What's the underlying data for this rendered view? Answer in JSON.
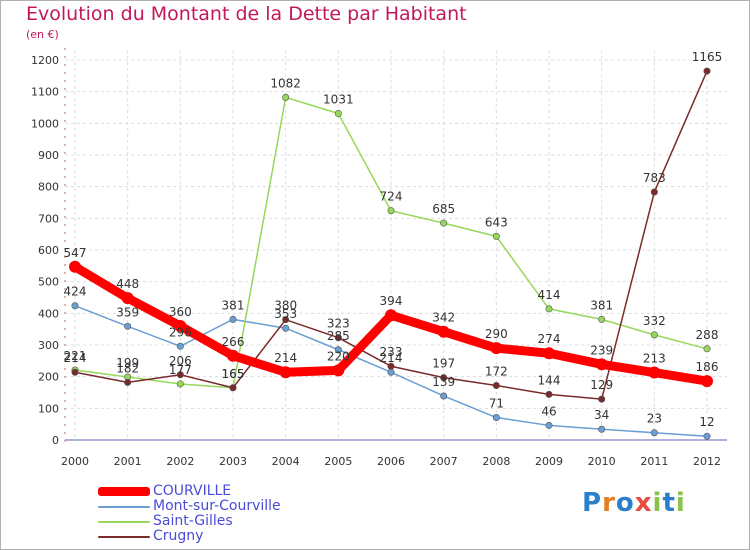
{
  "title": "Evolution du Montant de la Dette par Habitant",
  "subtitle": "(en €)",
  "brand": {
    "text": "Proxiti",
    "letter_colors": [
      "#2a7fc9",
      "#e67e22",
      "#2a7fc9",
      "#e74c3c",
      "#8bc34a",
      "#2a7fc9",
      "#8bc34a"
    ]
  },
  "chart_data": {
    "type": "line",
    "title": "Evolution du Montant de la Dette par Habitant",
    "subtitle": "(en €)",
    "xlabel": "",
    "ylabel": "",
    "x": [
      2000,
      2001,
      2002,
      2003,
      2004,
      2005,
      2006,
      2007,
      2008,
      2009,
      2010,
      2011,
      2012
    ],
    "ylim": [
      0,
      1200
    ],
    "yticks": [
      0,
      100,
      200,
      300,
      400,
      500,
      600,
      700,
      800,
      900,
      1000,
      1100,
      1200
    ],
    "grid": true,
    "legend_position": "bottom-left",
    "series": [
      {
        "name": "COURVILLE",
        "color": "#ff0000",
        "style": "thick",
        "values": [
          547,
          448,
          360,
          266,
          214,
          220,
          394,
          342,
          290,
          274,
          239,
          213,
          186
        ]
      },
      {
        "name": "Mont-sur-Courville",
        "color": "#6a9fd4",
        "style": "thin",
        "values": [
          424,
          359,
          296,
          381,
          353,
          285,
          214,
          139,
          71,
          46,
          34,
          23,
          12
        ]
      },
      {
        "name": "Saint-Gilles",
        "color": "#96d95a",
        "style": "thin",
        "values": [
          221,
          199,
          177,
          165,
          1082,
          1031,
          724,
          685,
          643,
          414,
          381,
          332,
          288
        ]
      },
      {
        "name": "Crugny",
        "color": "#7a2a2a",
        "style": "thin",
        "values": [
          214,
          182,
          206,
          165,
          380,
          323,
          233,
          197,
          172,
          144,
          129,
          783,
          1165
        ]
      }
    ]
  }
}
